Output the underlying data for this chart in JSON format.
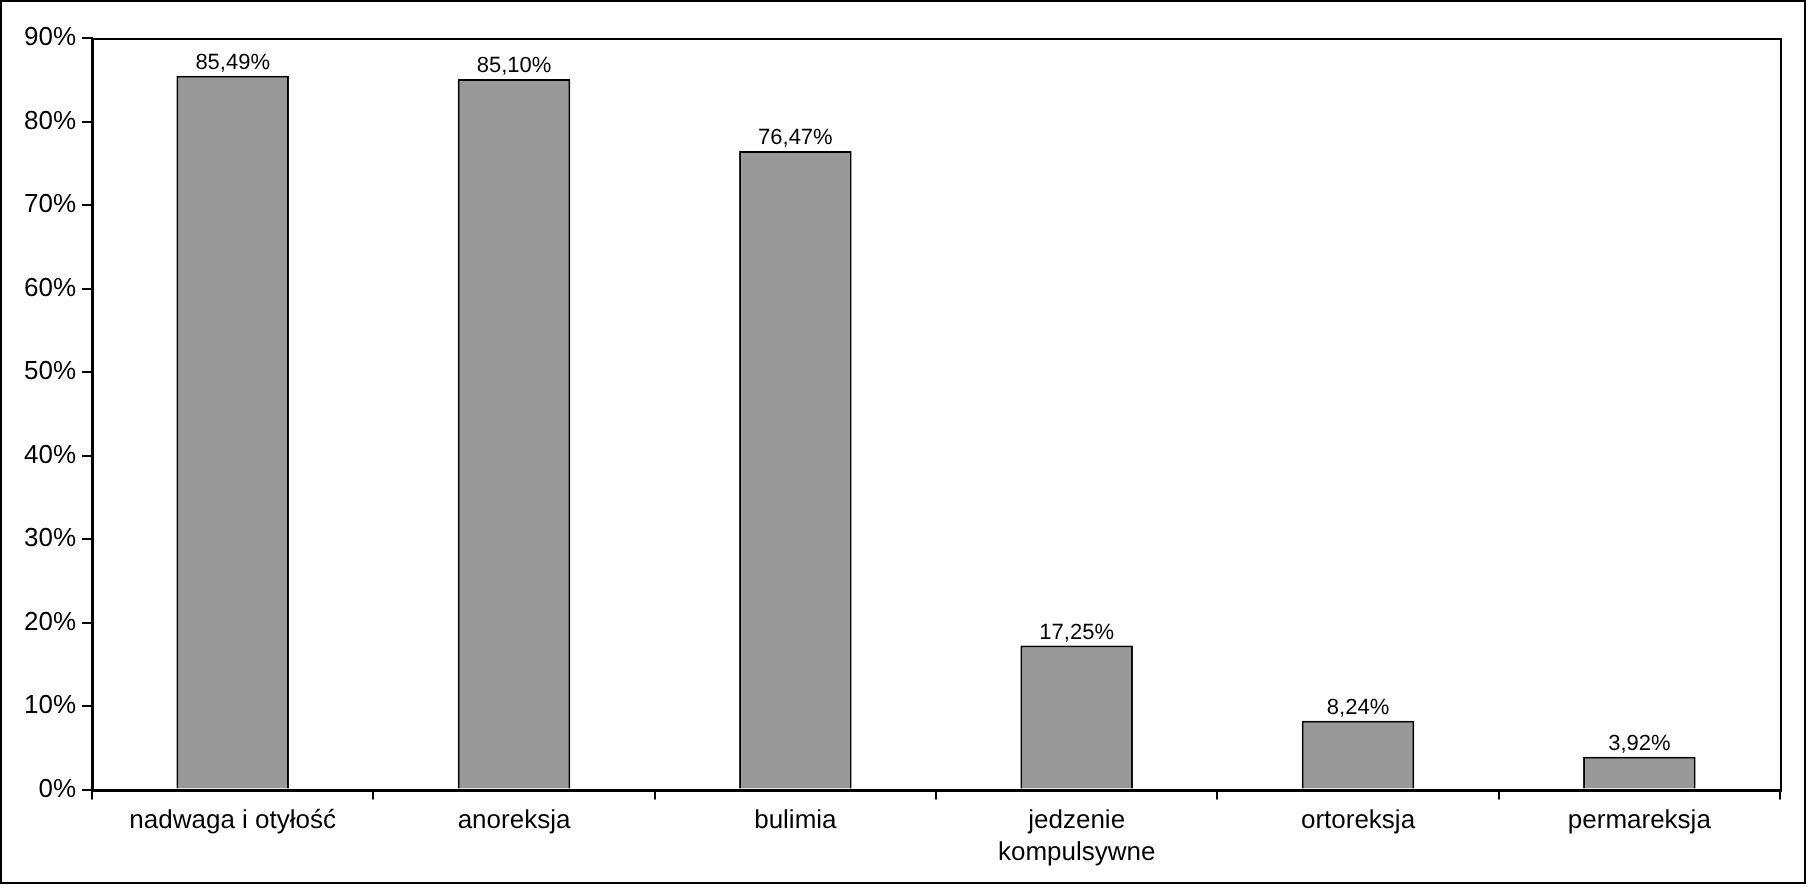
{
  "chart_data": {
    "type": "bar",
    "categories": [
      "nadwaga i otyłość",
      "anoreksja",
      "bulimia",
      "jedzenie kompulsywne",
      "ortoreksja",
      "permareksja"
    ],
    "values": [
      85.49,
      85.1,
      76.47,
      17.25,
      8.24,
      3.92
    ],
    "value_labels": [
      "85,49%",
      "85,10%",
      "76,47%",
      "17,25%",
      "8,24%",
      "3,92%"
    ],
    "color": "#999999",
    "ylim": [
      0,
      90
    ],
    "yticks": [
      {
        "value": 0,
        "label": "0%"
      },
      {
        "value": 10,
        "label": "10%"
      },
      {
        "value": 20,
        "label": "20%"
      },
      {
        "value": 30,
        "label": "30%"
      },
      {
        "value": 40,
        "label": "40%"
      },
      {
        "value": 50,
        "label": "50%"
      },
      {
        "value": 60,
        "label": "60%"
      },
      {
        "value": 70,
        "label": "70%"
      },
      {
        "value": 80,
        "label": "80%"
      },
      {
        "value": 90,
        "label": "90%"
      }
    ],
    "legend": false
  }
}
